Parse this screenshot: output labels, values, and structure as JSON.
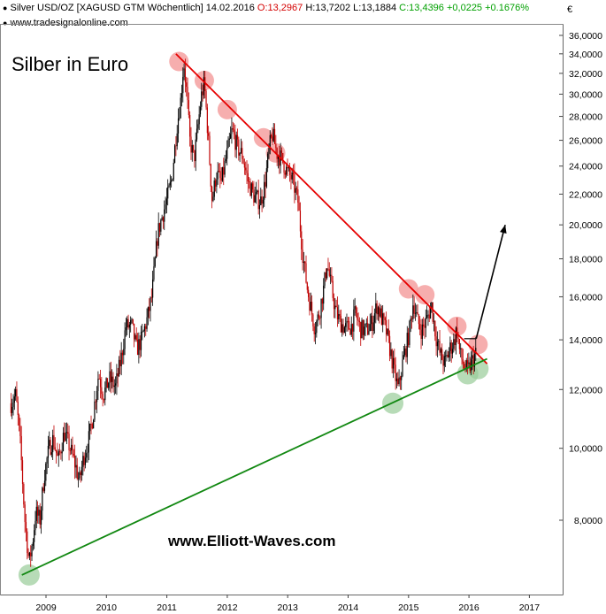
{
  "header": {
    "instrument": "Silver USD/OZ [XAGUSD GTM  Wöchentlich] 14.02.2016",
    "open": "O:13,2967",
    "high": "H:13,7202",
    "low": "L:13,1884",
    "close": "C:13,4396",
    "change": "+0,0225",
    "change_pct": "+0.1676%",
    "website": "www.tradesignalonline.com",
    "currency": "€"
  },
  "colors": {
    "open_label": "#d40000",
    "close_label": "#00a000",
    "candle_up": "#000000",
    "candle_down": "#c00000",
    "resistance": "#e60000",
    "support": "#118811",
    "red_marker": "#f4a0a0",
    "green_marker": "#99cc99"
  },
  "chart_data": {
    "type": "line",
    "title": "Silber in Euro",
    "watermark": "www.Elliott-Waves.com",
    "scale": "log",
    "ylim": [
      6.5,
      38
    ],
    "xlim": [
      2008.4,
      2017.4
    ],
    "y_ticks": [
      {
        "v": 36,
        "label": "36,0000"
      },
      {
        "v": 34,
        "label": "34,0000"
      },
      {
        "v": 32,
        "label": "32,0000"
      },
      {
        "v": 30,
        "label": "30,0000"
      },
      {
        "v": 28,
        "label": "28,0000"
      },
      {
        "v": 26,
        "label": "26,0000"
      },
      {
        "v": 24,
        "label": "24,0000"
      },
      {
        "v": 22,
        "label": "22,0000"
      },
      {
        "v": 20,
        "label": "20,0000"
      },
      {
        "v": 18,
        "label": "18,0000"
      },
      {
        "v": 16,
        "label": "16,0000"
      },
      {
        "v": 14,
        "label": "14,0000"
      },
      {
        "v": 12,
        "label": "12,0000"
      },
      {
        "v": 10,
        "label": "10,0000"
      },
      {
        "v": 8,
        "label": "8,0000"
      }
    ],
    "x_ticks": [
      {
        "v": 2009,
        "label": "2009"
      },
      {
        "v": 2010,
        "label": "2010"
      },
      {
        "v": 2011,
        "label": "2011"
      },
      {
        "v": 2012,
        "label": "2012"
      },
      {
        "v": 2013,
        "label": "2013"
      },
      {
        "v": 2014,
        "label": "2014"
      },
      {
        "v": 2015,
        "label": "2015"
      },
      {
        "v": 2016,
        "label": "2016"
      },
      {
        "v": 2017,
        "label": "2017"
      }
    ],
    "price_path": [
      [
        2008.42,
        11.5
      ],
      [
        2008.5,
        11.8
      ],
      [
        2008.58,
        10.0
      ],
      [
        2008.65,
        8.0
      ],
      [
        2008.72,
        7.0
      ],
      [
        2008.78,
        7.5
      ],
      [
        2008.83,
        8.2
      ],
      [
        2008.9,
        8.0
      ],
      [
        2008.97,
        9.2
      ],
      [
        2009.05,
        10.0
      ],
      [
        2009.12,
        10.3
      ],
      [
        2009.2,
        9.6
      ],
      [
        2009.3,
        10.5
      ],
      [
        2009.4,
        10.0
      ],
      [
        2009.5,
        9.4
      ],
      [
        2009.55,
        9.0
      ],
      [
        2009.62,
        9.7
      ],
      [
        2009.7,
        10.2
      ],
      [
        2009.78,
        11.1
      ],
      [
        2009.87,
        12.6
      ],
      [
        2009.95,
        11.8
      ],
      [
        2010.05,
        12.4
      ],
      [
        2010.15,
        12.1
      ],
      [
        2010.25,
        13.3
      ],
      [
        2010.32,
        14.6
      ],
      [
        2010.42,
        14.6
      ],
      [
        2010.5,
        13.6
      ],
      [
        2010.58,
        14.0
      ],
      [
        2010.68,
        15.0
      ],
      [
        2010.75,
        16.0
      ],
      [
        2010.85,
        19.5
      ],
      [
        2010.92,
        20.5
      ],
      [
        2011.0,
        21.6
      ],
      [
        2011.08,
        23.0
      ],
      [
        2011.17,
        27.3
      ],
      [
        2011.23,
        29.5
      ],
      [
        2011.28,
        33.2
      ],
      [
        2011.33,
        30.0
      ],
      [
        2011.38,
        26.0
      ],
      [
        2011.45,
        24.5
      ],
      [
        2011.5,
        26.5
      ],
      [
        2011.57,
        29.8
      ],
      [
        2011.62,
        31.0
      ],
      [
        2011.66,
        28.0
      ],
      [
        2011.7,
        25.0
      ],
      [
        2011.75,
        21.5
      ],
      [
        2011.82,
        23.5
      ],
      [
        2011.9,
        22.8
      ],
      [
        2012.0,
        25.0
      ],
      [
        2012.08,
        26.8
      ],
      [
        2012.17,
        25.4
      ],
      [
        2012.25,
        24.8
      ],
      [
        2012.35,
        22.8
      ],
      [
        2012.45,
        21.8
      ],
      [
        2012.55,
        21.5
      ],
      [
        2012.62,
        22.6
      ],
      [
        2012.7,
        25.5
      ],
      [
        2012.75,
        26.5
      ],
      [
        2012.82,
        25.0
      ],
      [
        2012.9,
        24.5
      ],
      [
        2013.0,
        23.5
      ],
      [
        2013.08,
        23.0
      ],
      [
        2013.17,
        21.5
      ],
      [
        2013.25,
        18.2
      ],
      [
        2013.32,
        16.5
      ],
      [
        2013.38,
        15.5
      ],
      [
        2013.45,
        14.5
      ],
      [
        2013.52,
        15.2
      ],
      [
        2013.6,
        16.5
      ],
      [
        2013.65,
        17.8
      ],
      [
        2013.72,
        16.5
      ],
      [
        2013.8,
        15.2
      ],
      [
        2013.87,
        14.8
      ],
      [
        2013.95,
        14.5
      ],
      [
        2014.05,
        14.6
      ],
      [
        2014.12,
        15.2
      ],
      [
        2014.2,
        14.5
      ],
      [
        2014.3,
        14.4
      ],
      [
        2014.4,
        14.8
      ],
      [
        2014.48,
        15.6
      ],
      [
        2014.55,
        15.0
      ],
      [
        2014.62,
        14.5
      ],
      [
        2014.7,
        13.5
      ],
      [
        2014.77,
        12.6
      ],
      [
        2014.83,
        12.0
      ],
      [
        2014.9,
        13.0
      ],
      [
        2014.97,
        13.8
      ],
      [
        2015.02,
        14.5
      ],
      [
        2015.08,
        15.8
      ],
      [
        2015.15,
        14.8
      ],
      [
        2015.22,
        14.4
      ],
      [
        2015.3,
        14.9
      ],
      [
        2015.38,
        15.6
      ],
      [
        2015.45,
        14.2
      ],
      [
        2015.52,
        13.4
      ],
      [
        2015.6,
        13.0
      ],
      [
        2015.68,
        13.6
      ],
      [
        2015.75,
        13.9
      ],
      [
        2015.8,
        14.5
      ],
      [
        2015.85,
        13.4
      ],
      [
        2015.92,
        12.9
      ],
      [
        2015.98,
        12.7
      ],
      [
        2016.05,
        13.1
      ],
      [
        2016.12,
        13.45
      ]
    ],
    "lines": [
      {
        "name": "resistance",
        "from": [
          2011.15,
          34.0
        ],
        "to": [
          2016.3,
          13.0
        ]
      },
      {
        "name": "support",
        "from": [
          2008.6,
          6.75
        ],
        "to": [
          2016.3,
          13.2
        ]
      }
    ],
    "resistance_touches": [
      [
        2011.2,
        33.2
      ],
      [
        2011.62,
        31.3
      ],
      [
        2012.0,
        28.6
      ],
      [
        2012.6,
        26.2
      ],
      [
        2012.8,
        25.0
      ],
      [
        2015.0,
        16.4
      ],
      [
        2015.27,
        16.1
      ],
      [
        2015.8,
        14.6
      ],
      [
        2016.15,
        13.8
      ]
    ],
    "support_touches": [
      [
        2008.72,
        6.75
      ],
      [
        2014.74,
        11.5
      ],
      [
        2015.98,
        12.6
      ],
      [
        2016.15,
        12.8
      ]
    ],
    "horizontal_segment": {
      "from": [
        2015.92,
        14.05
      ],
      "to": [
        2016.12,
        14.05
      ]
    },
    "forecast_arrow": {
      "from": [
        2016.12,
        14.05
      ],
      "to": [
        2016.6,
        20.0
      ]
    }
  }
}
